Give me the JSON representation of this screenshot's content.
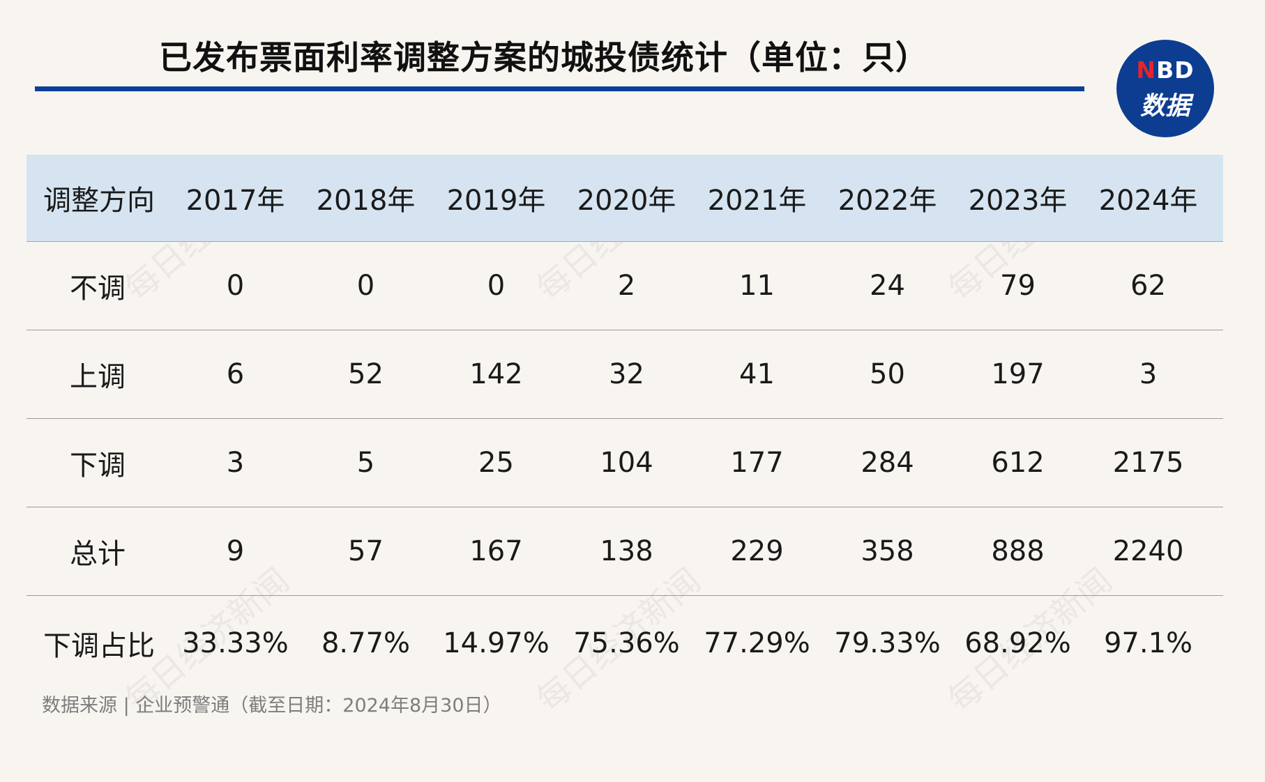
{
  "title": "已发布票面利率调整方案的城投债统计（单位：只）",
  "logo": {
    "top_accent": "N",
    "top_rest": "BD",
    "bottom": "数据"
  },
  "watermark_text": "每日经济新闻",
  "colors": {
    "background": "#f8f5f1",
    "title_rule": "#0c3f97",
    "header_background": "#d6e4f1",
    "logo_background": "#0d3d91",
    "logo_accent": "#e8232a"
  },
  "chart_data": {
    "type": "table",
    "columns": [
      "调整方向",
      "2017年",
      "2018年",
      "2019年",
      "2020年",
      "2021年",
      "2022年",
      "2023年",
      "2024年"
    ],
    "rows": [
      [
        "不调",
        "0",
        "0",
        "0",
        "2",
        "11",
        "24",
        "79",
        "62"
      ],
      [
        "上调",
        "6",
        "52",
        "142",
        "32",
        "41",
        "50",
        "197",
        "3"
      ],
      [
        "下调",
        "3",
        "5",
        "25",
        "104",
        "177",
        "284",
        "612",
        "2175"
      ],
      [
        "总计",
        "9",
        "57",
        "167",
        "138",
        "229",
        "358",
        "888",
        "2240"
      ],
      [
        "下调占比",
        "33.33%",
        "8.77%",
        "14.97%",
        "75.36%",
        "77.29%",
        "79.33%",
        "68.92%",
        "97.1%"
      ]
    ]
  },
  "source": "数据来源 | 企业预警通（截至日期：2024年8月30日）"
}
